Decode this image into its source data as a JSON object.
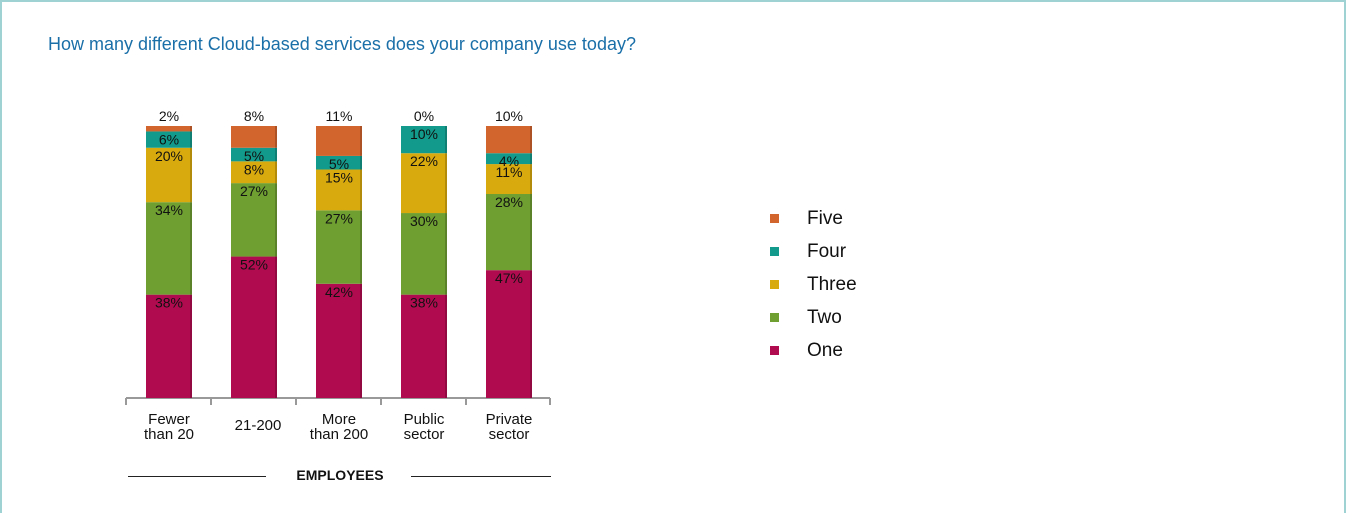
{
  "title": "How many different Cloud-based services does your company use today?",
  "axis_group_label": "EMPLOYEES",
  "colors": {
    "Five": "#d2652d",
    "Four": "#129b8c",
    "Three": "#d9aa0e",
    "Two": "#6f9f31",
    "One": "#b10b4f"
  },
  "chart_data": {
    "type": "bar",
    "stacked": true,
    "title": "How many different Cloud-based services does your company use today?",
    "xlabel": "EMPLOYEES",
    "ylabel": "",
    "ylim": [
      0,
      100
    ],
    "categories": [
      [
        "Fewer",
        "than 20"
      ],
      [
        "21-200"
      ],
      [
        "More",
        "than 200"
      ],
      [
        "Public",
        "sector"
      ],
      [
        "Private",
        "sector"
      ]
    ],
    "series": [
      {
        "name": "One",
        "values": [
          38,
          52,
          42,
          38,
          47
        ],
        "labels": [
          "38%",
          "52%",
          "42%",
          "38%",
          "47%"
        ]
      },
      {
        "name": "Two",
        "values": [
          34,
          27,
          27,
          30,
          28
        ],
        "labels": [
          "34%",
          "27%",
          "27%",
          "30%",
          "28%"
        ]
      },
      {
        "name": "Three",
        "values": [
          20,
          8,
          15,
          22,
          11
        ],
        "labels": [
          "20%",
          "8%",
          "15%",
          "22%",
          "11%"
        ]
      },
      {
        "name": "Four",
        "values": [
          6,
          5,
          5,
          10,
          4
        ],
        "labels": [
          "6%",
          "5%",
          "5%",
          "10%",
          "4%"
        ]
      },
      {
        "name": "Five",
        "values": [
          2,
          8,
          11,
          0,
          10
        ],
        "labels": [
          "2%",
          "8%",
          "11%",
          "0%",
          "10%"
        ]
      }
    ],
    "legend": {
      "placement": "right",
      "entries": [
        "Five",
        "Four",
        "Three",
        "Two",
        "One"
      ]
    }
  }
}
